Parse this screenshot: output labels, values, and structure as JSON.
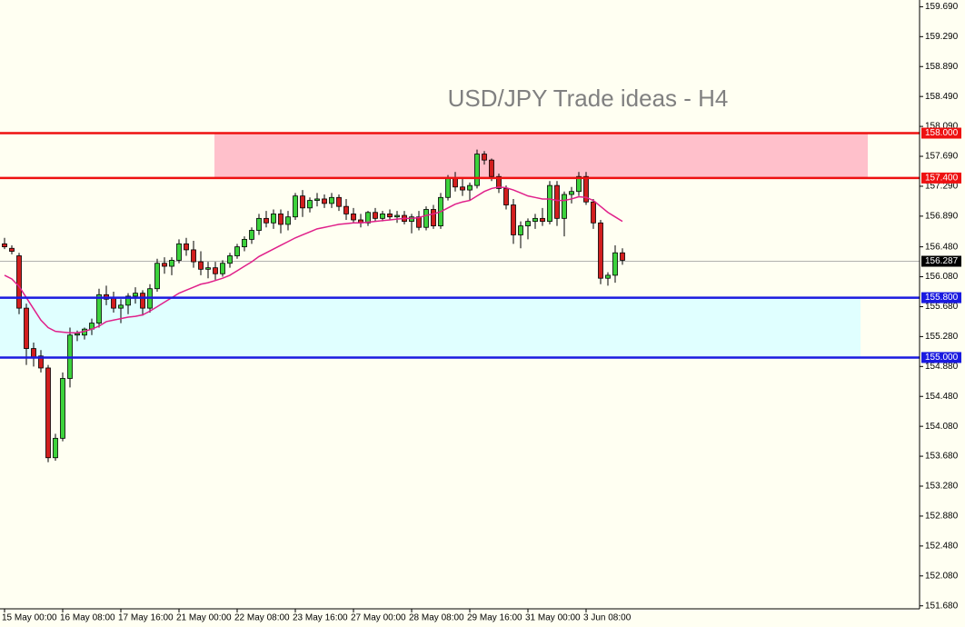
{
  "chart_data": {
    "type": "candlestick",
    "title": "USD/JPY Trade ideas - H4",
    "categories": [
      "15 May 00:00",
      null,
      null,
      null,
      null,
      null,
      null,
      null,
      "16 May 08:00",
      null,
      null,
      null,
      null,
      null,
      null,
      null,
      "17 May 16:00",
      null,
      null,
      null,
      null,
      null,
      null,
      null,
      "21 May 00:00",
      null,
      null,
      null,
      null,
      null,
      null,
      null,
      "22 May 08:00",
      null,
      null,
      null,
      null,
      null,
      null,
      null,
      "23 May 16:00",
      null,
      null,
      null,
      null,
      null,
      null,
      null,
      "27 May 00:00",
      null,
      null,
      null,
      null,
      null,
      null,
      null,
      "28 May 08:00",
      null,
      null,
      null,
      null,
      null,
      null,
      null,
      "29 May 16:00",
      null,
      null,
      null,
      null,
      null,
      null,
      null,
      "31 May 00:00",
      null,
      null,
      null,
      null,
      null,
      null,
      null,
      "3 Jun 08:00",
      null,
      null,
      null,
      null,
      null
    ],
    "open": [
      156.52,
      156.46,
      156.36,
      155.66,
      155.12,
      155.02,
      154.86,
      153.66,
      153.92,
      154.72,
      155.3,
      155.3,
      155.38,
      155.46,
      155.84,
      155.8,
      155.66,
      155.7,
      155.82,
      155.86,
      155.66,
      155.92,
      156.26,
      156.22,
      156.3,
      156.52,
      156.44,
      156.28,
      156.18,
      156.2,
      156.12,
      156.26,
      156.36,
      156.48,
      156.58,
      156.7,
      156.86,
      156.8,
      156.92,
      156.78,
      156.88,
      157.16,
      157.0,
      157.1,
      157.12,
      157.06,
      157.14,
      157.02,
      156.92,
      156.84,
      156.8,
      156.94,
      156.86,
      156.92,
      156.88,
      156.9,
      156.82,
      156.88,
      156.74,
      156.98,
      156.76,
      157.14,
      157.4,
      157.28,
      157.24,
      157.3,
      157.72,
      157.64,
      157.42,
      157.26,
      157.04,
      156.64,
      156.76,
      156.82,
      156.86,
      156.82,
      157.3,
      156.86,
      157.18,
      157.22,
      157.42,
      157.08,
      156.8,
      156.06,
      156.1,
      156.4
    ],
    "high": [
      156.6,
      156.5,
      156.4,
      155.72,
      155.2,
      155.1,
      154.9,
      153.98,
      154.8,
      155.4,
      155.36,
      155.4,
      155.52,
      155.92,
      155.96,
      155.88,
      155.78,
      155.86,
      155.94,
      155.9,
      155.98,
      156.32,
      156.34,
      156.34,
      156.58,
      156.6,
      156.56,
      156.42,
      156.28,
      156.28,
      156.3,
      156.4,
      156.52,
      156.62,
      156.74,
      156.92,
      156.96,
      156.98,
      156.98,
      156.96,
      157.2,
      157.24,
      157.14,
      157.2,
      157.18,
      157.2,
      157.18,
      157.12,
      157.0,
      156.92,
      156.96,
      157.0,
      156.96,
      156.98,
      156.96,
      156.96,
      156.92,
      156.96,
      157.02,
      157.04,
      157.2,
      157.44,
      157.48,
      157.4,
      157.34,
      157.78,
      157.76,
      157.66,
      157.46,
      157.3,
      157.12,
      156.82,
      156.86,
      156.92,
      157.0,
      157.36,
      157.36,
      157.22,
      157.28,
      157.48,
      157.48,
      157.12,
      156.84,
      156.14,
      156.5,
      156.46
    ],
    "low": [
      156.45,
      156.38,
      155.58,
      154.9,
      154.88,
      154.8,
      153.6,
      153.62,
      153.88,
      154.6,
      155.22,
      155.24,
      155.3,
      155.4,
      155.7,
      155.6,
      155.46,
      155.58,
      155.72,
      155.56,
      155.6,
      155.88,
      156.12,
      156.1,
      156.26,
      156.36,
      156.2,
      156.1,
      156.06,
      156.04,
      156.08,
      156.2,
      156.32,
      156.42,
      156.52,
      156.64,
      156.74,
      156.72,
      156.66,
      156.7,
      156.84,
      156.88,
      156.94,
      157.02,
      157.0,
      157.0,
      156.96,
      156.84,
      156.8,
      156.74,
      156.76,
      156.82,
      156.82,
      156.84,
      156.8,
      156.78,
      156.66,
      156.7,
      156.7,
      156.72,
      156.72,
      157.1,
      157.22,
      157.16,
      157.1,
      157.26,
      157.58,
      157.36,
      157.2,
      156.98,
      156.52,
      156.46,
      156.58,
      156.72,
      156.76,
      156.78,
      156.76,
      156.62,
      157.06,
      157.16,
      157.04,
      156.72,
      155.98,
      155.96,
      156.0,
      156.24
    ],
    "close": [
      156.48,
      156.42,
      155.66,
      155.12,
      155.0,
      154.86,
      153.66,
      153.92,
      154.72,
      155.3,
      155.32,
      155.38,
      155.46,
      155.84,
      155.78,
      155.66,
      155.7,
      155.82,
      155.86,
      155.66,
      155.92,
      156.26,
      156.22,
      156.3,
      156.52,
      156.44,
      156.28,
      156.18,
      156.2,
      156.12,
      156.26,
      156.36,
      156.48,
      156.58,
      156.7,
      156.86,
      156.8,
      156.92,
      156.78,
      156.88,
      157.16,
      157.0,
      157.1,
      157.12,
      157.06,
      157.14,
      157.02,
      156.92,
      156.84,
      156.8,
      156.94,
      156.86,
      156.92,
      156.88,
      156.9,
      156.82,
      156.88,
      156.74,
      156.98,
      156.76,
      157.14,
      157.4,
      157.28,
      157.24,
      157.3,
      157.72,
      157.64,
      157.42,
      157.26,
      157.04,
      156.64,
      156.76,
      156.82,
      156.86,
      156.82,
      157.3,
      156.86,
      157.18,
      157.22,
      157.42,
      157.08,
      156.8,
      156.06,
      156.1,
      156.4,
      156.3
    ],
    "up_color": "#3cd23c",
    "down_color": "#d21e1e",
    "ma": {
      "color": "#e0208a",
      "values": [
        156.1,
        156.05,
        155.95,
        155.8,
        155.65,
        155.5,
        155.4,
        155.35,
        155.34,
        155.33,
        155.33,
        155.35,
        155.38,
        155.42,
        155.48,
        155.5,
        155.52,
        155.54,
        155.55,
        155.57,
        155.62,
        155.68,
        155.74,
        155.8,
        155.86,
        155.9,
        155.94,
        155.98,
        156.0,
        156.03,
        156.06,
        156.1,
        156.16,
        156.22,
        156.28,
        156.35,
        156.4,
        156.45,
        156.5,
        156.55,
        156.6,
        156.64,
        156.68,
        156.72,
        156.74,
        156.76,
        156.78,
        156.79,
        156.8,
        156.8,
        156.81,
        156.82,
        156.83,
        156.84,
        156.85,
        156.86,
        156.86,
        156.87,
        156.9,
        156.92,
        156.95,
        157.0,
        157.05,
        157.08,
        157.1,
        157.16,
        157.22,
        157.26,
        157.28,
        157.27,
        157.24,
        157.2,
        157.16,
        157.14,
        157.12,
        157.12,
        157.1,
        157.1,
        157.12,
        157.15,
        157.14,
        157.1,
        157.02,
        156.94,
        156.88,
        156.82
      ]
    },
    "levels": [
      {
        "value": 158,
        "label": "158.000",
        "color": "#ee1111"
      },
      {
        "value": 157.4,
        "label": "157.400",
        "color": "#ee1111"
      },
      {
        "value": 155.8,
        "label": "155.800",
        "color": "#1a1ae0"
      },
      {
        "value": 155,
        "label": "155.000",
        "color": "#1a1ae0"
      }
    ],
    "zones": [
      {
        "color": "#ffc0cb"
      },
      {
        "color": "#e0ffff"
      }
    ],
    "current_price": {
      "value": 156.287,
      "label": "156.287"
    },
    "ylim": [
      151.64,
      159.78
    ],
    "yticks": [
      {
        "value": 159.69,
        "label": "159.690"
      },
      {
        "value": 159.29,
        "label": "159.290"
      },
      {
        "value": 158.89,
        "label": "158.890"
      },
      {
        "value": 158.49,
        "label": "158.490"
      },
      {
        "value": 158.09,
        "label": "158.090"
      },
      {
        "value": 157.69,
        "label": "157.690"
      },
      {
        "value": 157.29,
        "label": "157.290"
      },
      {
        "value": 156.89,
        "label": "156.890"
      },
      {
        "value": 156.48,
        "label": "156.480"
      },
      {
        "value": 156.08,
        "label": "156.080"
      },
      {
        "value": 155.68,
        "label": "155.680"
      },
      {
        "value": 155.28,
        "label": "155.280"
      },
      {
        "value": 154.88,
        "label": "154.880"
      },
      {
        "value": 154.48,
        "label": "154.480"
      },
      {
        "value": 154.08,
        "label": "154.080"
      },
      {
        "value": 153.68,
        "label": "153.680"
      },
      {
        "value": 153.28,
        "label": "153.280"
      },
      {
        "value": 152.88,
        "label": "152.880"
      },
      {
        "value": 152.48,
        "label": "152.480"
      },
      {
        "value": 152.08,
        "label": "152.080"
      },
      {
        "value": 151.68,
        "label": "151.680"
      }
    ]
  }
}
